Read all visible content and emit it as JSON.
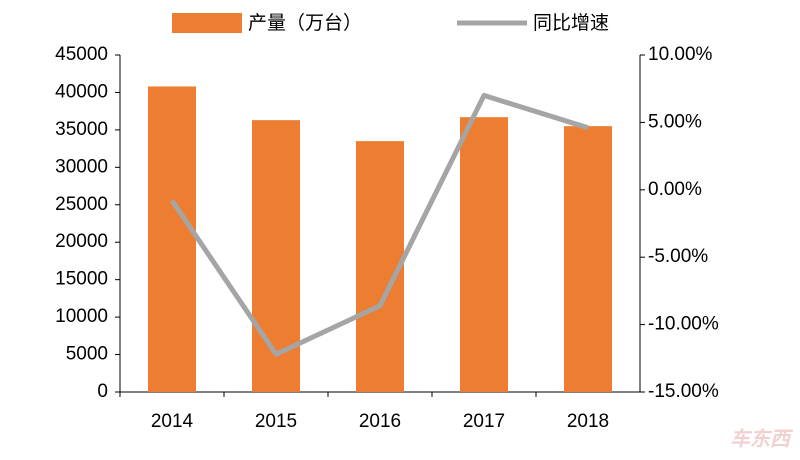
{
  "chart_data": {
    "type": "bar-line",
    "categories": [
      "2014",
      "2015",
      "2016",
      "2017",
      "2018"
    ],
    "series": [
      {
        "name": "产量（万台）",
        "color": "#ed7d31",
        "type": "bar",
        "axis": "y",
        "values": [
          40800,
          36300,
          33500,
          36700,
          35500
        ]
      },
      {
        "name": "同比增速",
        "color": "#a5a5a5",
        "type": "line",
        "axis": "y2",
        "values": [
          -0.8,
          -12.2,
          -8.6,
          7.0,
          4.6
        ]
      }
    ],
    "ylim": [
      0,
      45000
    ],
    "yticks": [
      0,
      5000,
      10000,
      15000,
      20000,
      25000,
      30000,
      35000,
      40000,
      45000
    ],
    "y2lim": [
      -15,
      10
    ],
    "y2ticks": [
      {
        "value": -15,
        "label": "-15.00%"
      },
      {
        "value": -10,
        "label": "-10.00%"
      },
      {
        "value": -5,
        "label": "-5.00%"
      },
      {
        "value": 0,
        "label": "0.00%"
      },
      {
        "value": 5,
        "label": "5.00%"
      },
      {
        "value": 10,
        "label": "10.00%"
      }
    ],
    "legend": "top",
    "watermark": "车东西"
  }
}
